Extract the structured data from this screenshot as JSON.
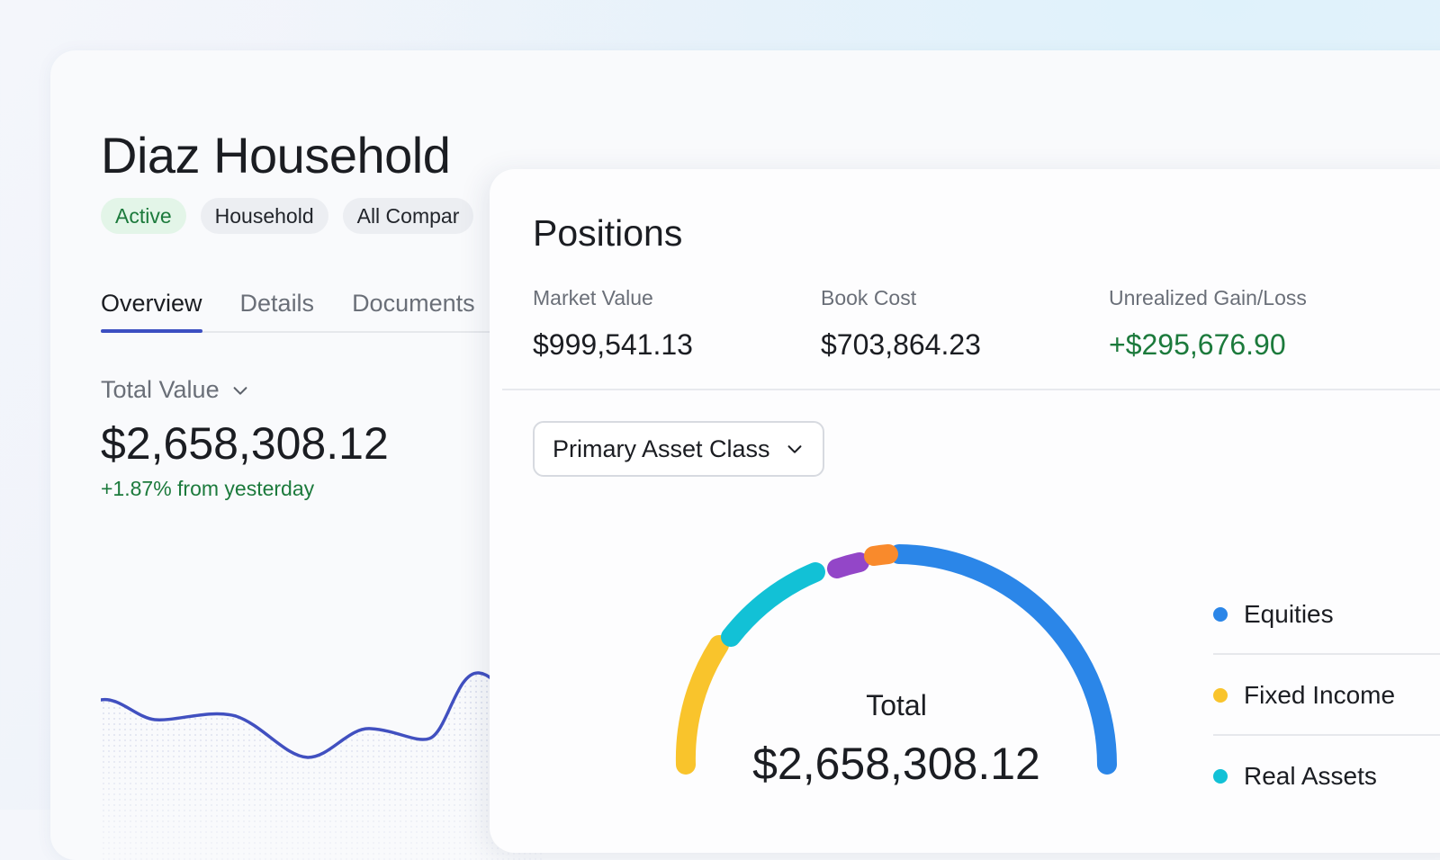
{
  "household": {
    "title": "Diaz Household",
    "tags": [
      "Active",
      "Household",
      "All Compar"
    ],
    "tabs": [
      "Overview",
      "Details",
      "Documents"
    ],
    "active_tab": "Overview",
    "total_value_label": "Total Value",
    "total_value": "$2,658,308.12",
    "change_text": "+1.87% from yesterday"
  },
  "positions": {
    "title": "Positions",
    "metrics": [
      {
        "label": "Market Value",
        "value": "$999,541.13"
      },
      {
        "label": "Book Cost",
        "value": "$703,864.23"
      },
      {
        "label": "Unrealized Gain/Loss",
        "value": "+$295,676.90"
      }
    ],
    "grouping_select": "Primary Asset Class",
    "donut_total_label": "Total",
    "donut_total_value": "$2,658,308.12",
    "legend": [
      {
        "label": "Equities",
        "color": "#2b86e8"
      },
      {
        "label": "Fixed Income",
        "color": "#f9c42c"
      },
      {
        "label": "Real Assets",
        "color": "#12c1d6"
      }
    ]
  },
  "colors": {
    "accent": "#3c4fc2",
    "positive": "#1c7a3c",
    "donut_purple": "#9346c8",
    "donut_orange": "#f98a2c"
  }
}
